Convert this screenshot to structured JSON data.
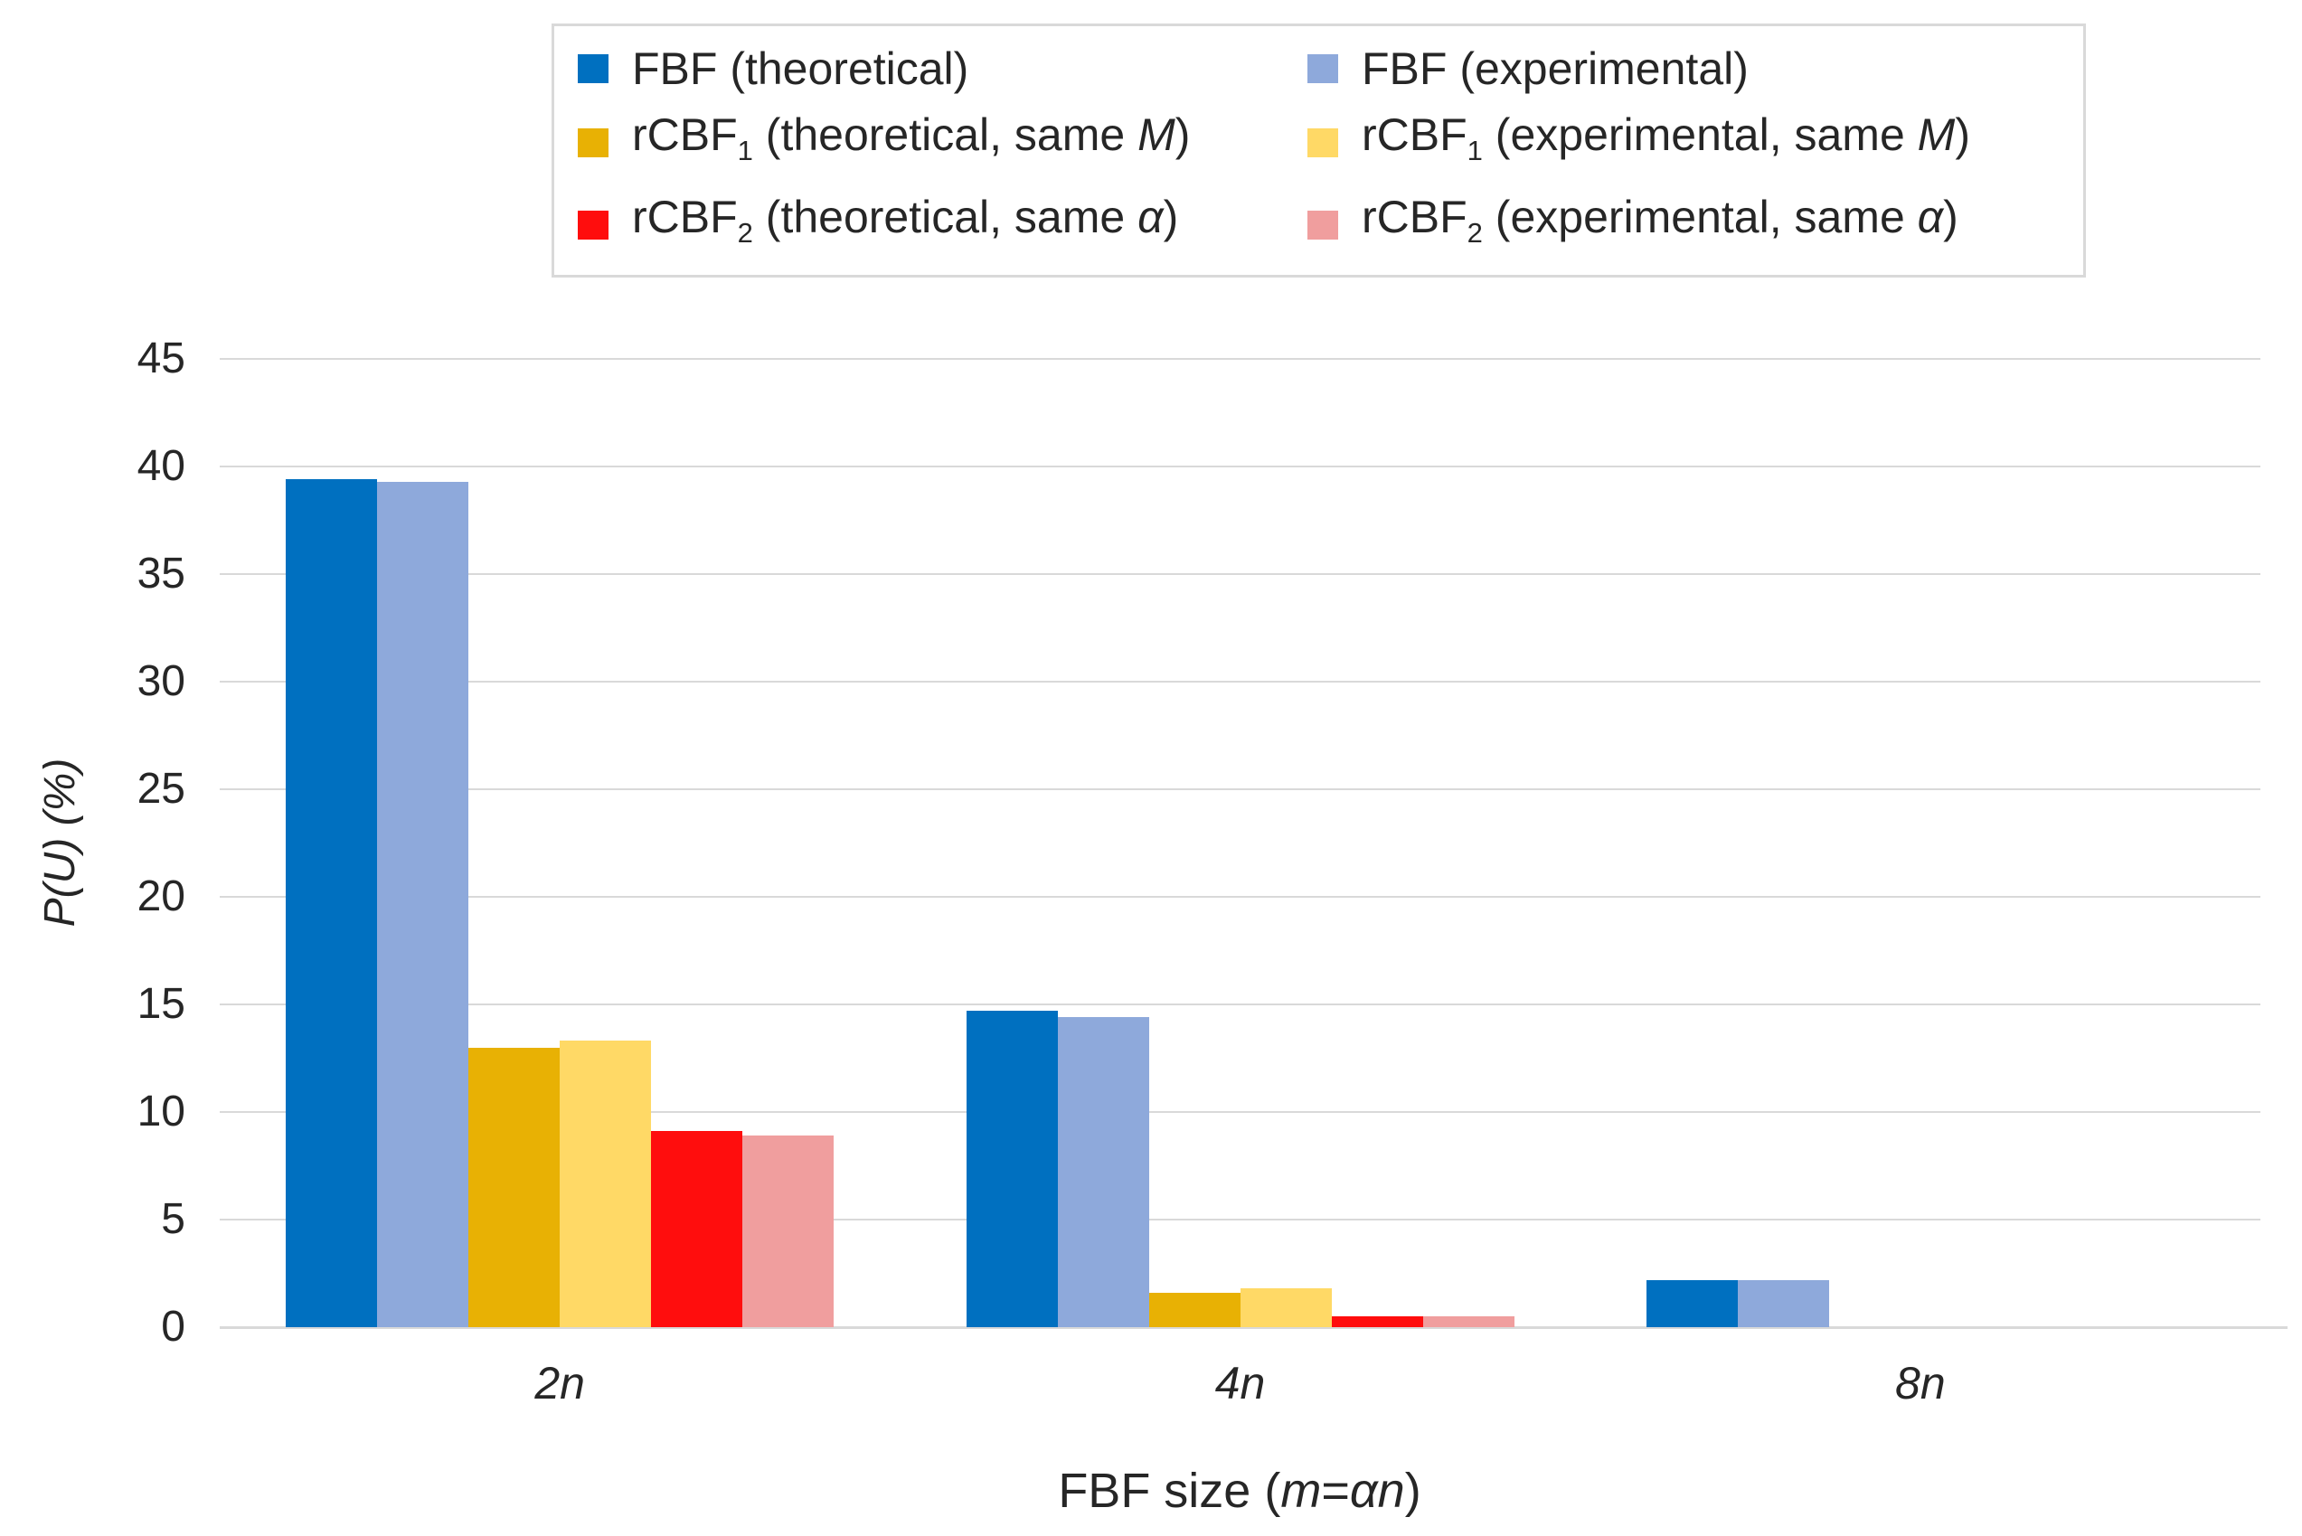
{
  "colors": {
    "grid": "#D9D9D9",
    "axis": "#D9D9D9",
    "legend_border": "#D9D9D9",
    "text": "#262626",
    "background": "#FFFFFF"
  },
  "chart_data": {
    "type": "bar",
    "title": "",
    "ylabel": "P(U) (%)",
    "xlabel_text": "FBF size (m=αn)",
    "xlabel_parts": [
      {
        "text": "FBF size (",
        "italic": false
      },
      {
        "text": "m",
        "italic": true
      },
      {
        "text": "=",
        "italic": false
      },
      {
        "text": "αn",
        "italic": true
      },
      {
        "text": ")",
        "italic": false
      }
    ],
    "categories": [
      "2n",
      "4n",
      "8n"
    ],
    "y_axis": {
      "min": 0,
      "max": 45,
      "step": 5,
      "tick_labels": [
        "0",
        "5",
        "10",
        "15",
        "20",
        "25",
        "30",
        "35",
        "40",
        "45"
      ]
    },
    "grid": "horizontal",
    "legend": {
      "position": "top",
      "columns": 2,
      "order": "row-major"
    },
    "series": [
      {
        "id": "fbf-theoretical",
        "name": "FBF (theoretical)",
        "color": "#0070C0",
        "values": [
          39.4,
          14.7,
          2.2
        ],
        "label_parts": {
          "base": "FBF",
          "sub": "",
          "mid": " (theoretical)",
          "emph": "",
          "end": ""
        }
      },
      {
        "id": "fbf-experimental",
        "name": "FBF (experimental)",
        "color": "#8EA9DB",
        "values": [
          39.3,
          14.4,
          2.2
        ],
        "label_parts": {
          "base": "FBF",
          "sub": "",
          "mid": " (experimental)",
          "emph": "",
          "end": ""
        }
      },
      {
        "id": "rcbf1-theoretical",
        "name": "rCBF1 (theoretical, same M)",
        "color": "#E8B104",
        "values": [
          13.0,
          1.6,
          0
        ],
        "label_parts": {
          "base": "rCBF",
          "sub": "1",
          "mid": " (theoretical, same ",
          "emph": "M",
          "end": ")"
        }
      },
      {
        "id": "rcbf1-experimental",
        "name": "rCBF1 (experimental, same M)",
        "color": "#FFD966",
        "values": [
          13.3,
          1.8,
          0
        ],
        "label_parts": {
          "base": "rCBF",
          "sub": "1",
          "mid": " (experimental, same ",
          "emph": "M",
          "end": ")"
        }
      },
      {
        "id": "rcbf2-theoretical",
        "name": "rCBF2 (theoretical, same α)",
        "color": "#FF0D0D",
        "values": [
          9.1,
          0.5,
          0
        ],
        "label_parts": {
          "base": "rCBF",
          "sub": "2",
          "mid": " (theoretical, same ",
          "emph": "α",
          "end": ")"
        }
      },
      {
        "id": "rcbf2-experimental",
        "name": "rCBF2 (experimental, same α)",
        "color": "#F09E9E",
        "values": [
          8.9,
          0.5,
          0
        ],
        "label_parts": {
          "base": "rCBF",
          "sub": "2",
          "mid": " (experimental, same ",
          "emph": "α",
          "end": ")"
        }
      }
    ]
  }
}
